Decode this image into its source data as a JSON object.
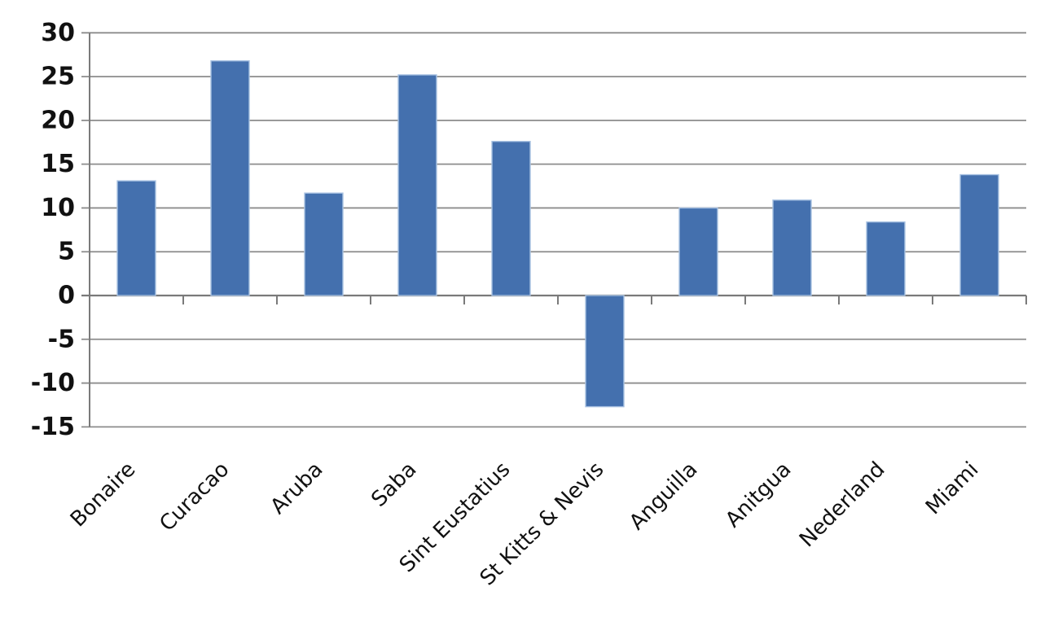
{
  "chart_data": {
    "type": "bar",
    "title": "",
    "xlabel": "",
    "ylabel": "",
    "categories": [
      "Bonaire",
      "Curacao",
      "Aruba",
      "Saba",
      "Sint Eustatius",
      "St Kitts & Nevis",
      "Anguilla",
      "Anitgua",
      "Nederland",
      "Miami"
    ],
    "values": [
      13.1,
      26.8,
      11.7,
      25.2,
      17.6,
      -12.7,
      10.0,
      10.9,
      8.4,
      13.8
    ],
    "ylim": [
      -15,
      30
    ],
    "ytick_step": 5,
    "y_ticks": [
      30,
      25,
      20,
      15,
      10,
      5,
      0,
      -5,
      -10,
      -15
    ],
    "grid": true,
    "legend_position": "none",
    "x_label_rotation_deg": 45,
    "colors": {
      "bar_fill": "#4470AE",
      "bar_border": "#A9C2E2",
      "gridline": "#8C8C8C",
      "axis": "#7A7A7A",
      "text": "#111111",
      "background": "#FFFFFF"
    }
  }
}
